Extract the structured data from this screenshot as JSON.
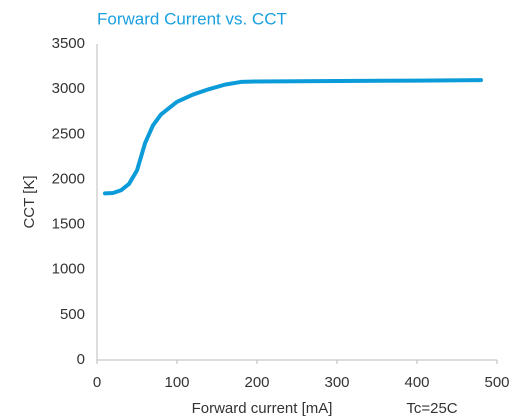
{
  "chart_data": {
    "type": "line",
    "title": "Forward Current vs. CCT",
    "x_label": "Forward current [mA]",
    "y_label": "CCT [K]",
    "annotation": "Tc=25C",
    "x": [
      10,
      20,
      30,
      40,
      50,
      60,
      70,
      80,
      100,
      120,
      140,
      160,
      180,
      200,
      300,
      400,
      480
    ],
    "series": [
      {
        "name": "CCT",
        "color": "#0b9bd9",
        "values": [
          1845,
          1850,
          1880,
          1950,
          2100,
          2400,
          2600,
          2720,
          2860,
          2940,
          3000,
          3050,
          3080,
          3085,
          3090,
          3095,
          3100
        ]
      }
    ],
    "xlim": [
      0,
      500
    ],
    "xticks": [
      0,
      100,
      200,
      300,
      400,
      500
    ],
    "ylim": [
      0,
      3500
    ],
    "yticks": [
      0,
      500,
      1000,
      1500,
      2000,
      2500,
      3000,
      3500
    ],
    "grid": false
  }
}
